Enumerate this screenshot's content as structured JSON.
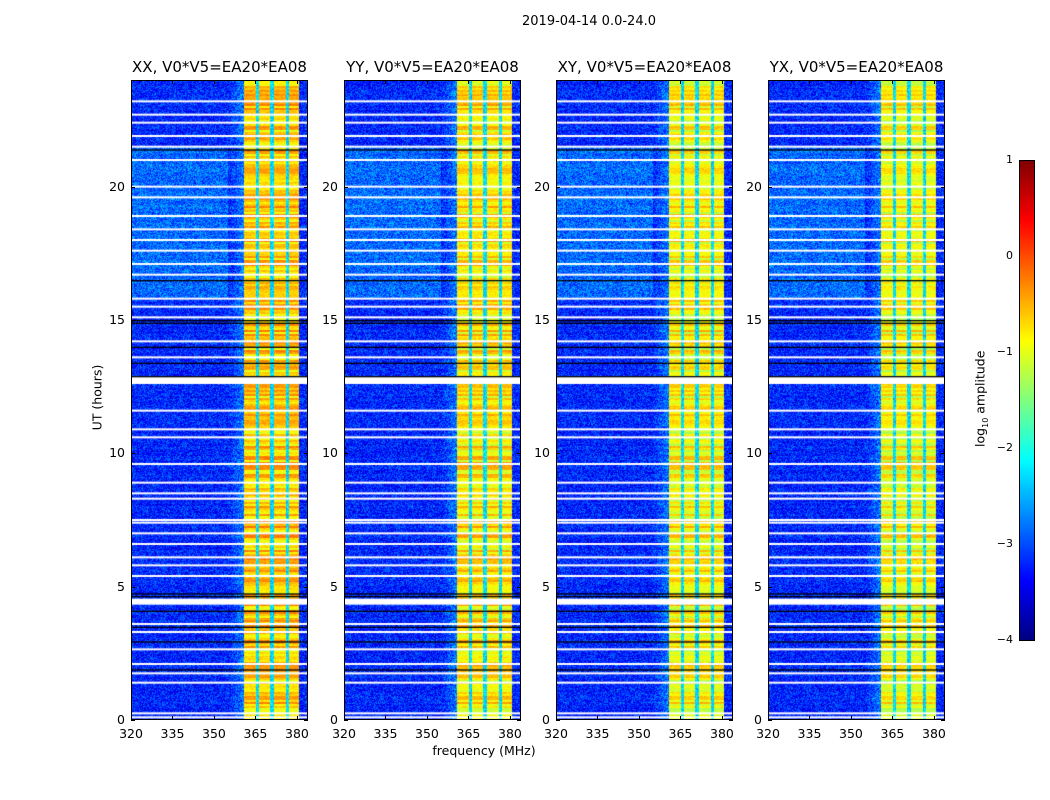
{
  "chart_data": {
    "type": "heatmap",
    "title": "2019-04-14 0.0-24.0",
    "xlabel": "frequency (MHz)",
    "ylabel": "UT (hours)",
    "xlim": [
      320,
      384
    ],
    "ylim": [
      0,
      24
    ],
    "xticks": [
      320,
      335,
      350,
      365,
      380
    ],
    "yticks": [
      0,
      5,
      10,
      15,
      20
    ],
    "panels": [
      {
        "title": "XX, V0*V5=EA20*EA08",
        "band_level": -0.6
      },
      {
        "title": "YY, V0*V5=EA20*EA08",
        "band_level": -0.75
      },
      {
        "title": "XY, V0*V5=EA20*EA08",
        "band_level": -0.85
      },
      {
        "title": "YX, V0*V5=EA20*EA08",
        "band_level": -0.9
      }
    ],
    "background_level": -3.2,
    "strong_band_mhz": [
      360.5,
      380.5
    ],
    "band_gaps_mhz": [
      365.5,
      370.8,
      376.3
    ],
    "flagged_hours_white": [
      0.1,
      0.25,
      1.4,
      1.75,
      2.1,
      2.65,
      3.3,
      3.6,
      4.4,
      4.5,
      5.4,
      5.8,
      6.1,
      6.6,
      7.0,
      7.4,
      7.5,
      8.3,
      8.5,
      8.9,
      9.6,
      10.6,
      10.9,
      11.6,
      12.7,
      12.85,
      13.6,
      14.2,
      15.1,
      15.5,
      15.8,
      16.7,
      17.1,
      17.6,
      18.0,
      18.4,
      18.9,
      19.6,
      20.0,
      21.0,
      21.5,
      21.9,
      22.4,
      22.7,
      23.2
    ],
    "flagged_hours_black": [
      1.9,
      2.95,
      3.5,
      4.1,
      4.65,
      4.75,
      12.9,
      13.4,
      14.0,
      14.9,
      15.0,
      16.5,
      21.4
    ],
    "colorbar": {
      "label": "log10 amplitude",
      "label_main": "log",
      "label_sub": "10",
      "label_rest": " amplitude",
      "vmin": -4,
      "vmax": 1,
      "ticks": [
        "1",
        "0",
        "−1",
        "−2",
        "−3",
        "−4"
      ],
      "colormap": "jet"
    },
    "xtick_labels": [
      "320",
      "335",
      "350",
      "365",
      "380"
    ],
    "ytick_labels": [
      "0",
      "5",
      "10",
      "15",
      "20"
    ]
  }
}
